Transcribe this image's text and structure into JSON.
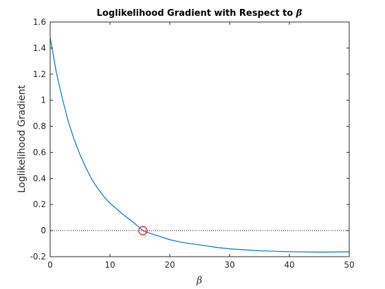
{
  "chart_data": {
    "type": "line",
    "title_prefix": "Loglikelihood Gradient with Respect to ",
    "title_symbol": "β",
    "xlabel": "β",
    "ylabel": "Loglikelihood Gradient",
    "xlim": [
      0,
      50
    ],
    "ylim": [
      -0.2,
      1.6
    ],
    "xticks": [
      0,
      10,
      20,
      30,
      40,
      50
    ],
    "yticks": [
      -0.2,
      0,
      0.2,
      0.4,
      0.6,
      0.8,
      1,
      1.2,
      1.4,
      1.6
    ],
    "xtick_labels": [
      "0",
      "10",
      "20",
      "30",
      "40",
      "50"
    ],
    "ytick_labels": [
      "-0.2",
      "0",
      "0.2",
      "0.4",
      "0.6",
      "0.8",
      "1",
      "1.2",
      "1.4",
      "1.6"
    ],
    "grid": false,
    "series": [
      {
        "style": "solid",
        "color": "#0072bd",
        "x": [
          0,
          1,
          2,
          3,
          4,
          5,
          6,
          7,
          8,
          9,
          10,
          12,
          14,
          15.5,
          16,
          18,
          20,
          22,
          25,
          28,
          30,
          35,
          40,
          45,
          50
        ],
        "y": [
          1.48,
          1.22,
          1.02,
          0.84,
          0.7,
          0.58,
          0.48,
          0.39,
          0.32,
          0.26,
          0.21,
          0.13,
          0.06,
          0.0,
          -0.01,
          -0.04,
          -0.07,
          -0.09,
          -0.11,
          -0.13,
          -0.14,
          -0.155,
          -0.162,
          -0.165,
          -0.163
        ]
      },
      {
        "style": "dotted",
        "color": "#000000",
        "x": [
          0,
          50
        ],
        "y": [
          0,
          0
        ]
      }
    ],
    "marker": {
      "x": 15.5,
      "y": 0,
      "shape": "circle",
      "color": "#ff0000"
    }
  }
}
